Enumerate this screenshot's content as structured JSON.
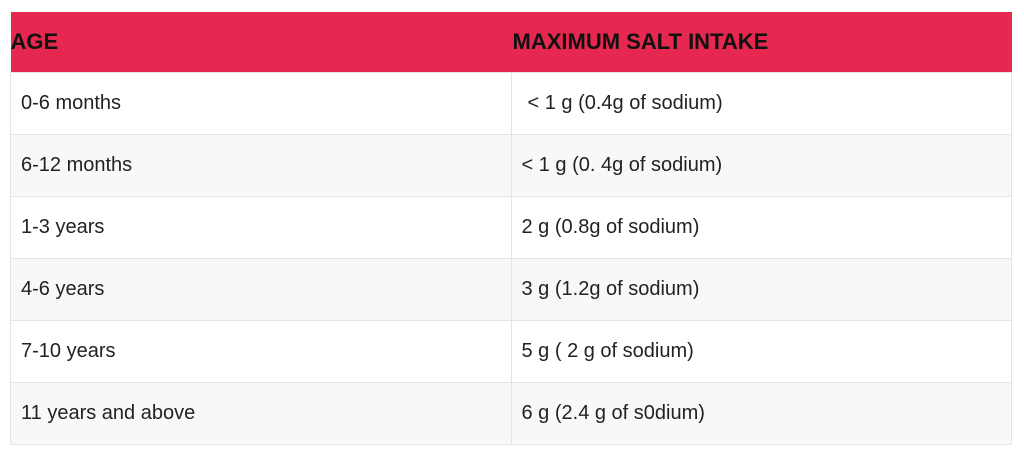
{
  "table": {
    "header": [
      "AGE",
      "MAXIMUM SALT INTAKE"
    ],
    "rows": [
      [
        "0-6 months",
        "< 1 g (0.4g of sodium)"
      ],
      [
        "6-12 months",
        "< 1 g (0. 4g of sodium)"
      ],
      [
        "1-3 years",
        "2 g (0.8g of sodium)"
      ],
      [
        "4-6 years",
        "3 g (1.2g of sodium)"
      ],
      [
        "7-10 years",
        "5 g ( 2 g of sodium)"
      ],
      [
        "11 years and above",
        "6 g (2.4 g of s0dium)"
      ]
    ]
  }
}
